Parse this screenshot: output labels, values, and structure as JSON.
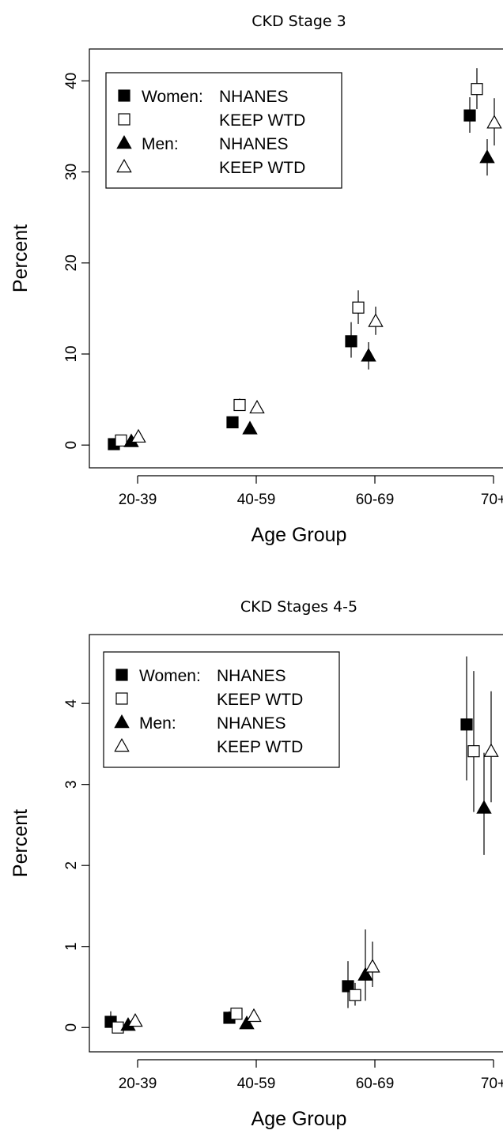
{
  "chart_data": [
    {
      "type": "scatter",
      "title": "CKD Stage 3",
      "xlabel": "Age Group",
      "ylabel": "Percent",
      "categories": [
        "20-39",
        "40-59",
        "60-69",
        "70+"
      ],
      "ylim": [
        -2.5,
        43.5
      ],
      "yticks": [
        0,
        10,
        20,
        30,
        40
      ],
      "grid": false,
      "legend": {
        "placement": "top-left",
        "entries": [
          {
            "sex": "Women:",
            "source": "NHANES"
          },
          {
            "sex": "",
            "source": "KEEP WTD"
          },
          {
            "sex": "Men:",
            "source": "NHANES"
          },
          {
            "sex": "",
            "source": "KEEP WTD"
          }
        ]
      },
      "series": [
        {
          "marker": "filled-square",
          "values": [
            0.1,
            2.5,
            11.4,
            36.2
          ],
          "lower": [
            0.0,
            2.2,
            9.6,
            34.3
          ],
          "upper": [
            0.3,
            2.9,
            13.5,
            38.2
          ]
        },
        {
          "marker": "open-square",
          "values": [
            0.5,
            4.4,
            15.1,
            39.1
          ],
          "lower": [
            0.3,
            3.8,
            13.3,
            36.9
          ],
          "upper": [
            0.8,
            5.1,
            17.0,
            41.4
          ]
        },
        {
          "marker": "filled-triangle",
          "values": [
            0.4,
            1.8,
            9.8,
            31.6
          ],
          "lower": [
            0.2,
            1.5,
            8.3,
            29.6
          ],
          "upper": [
            0.6,
            2.1,
            11.3,
            33.6
          ]
        },
        {
          "marker": "open-triangle",
          "values": [
            0.9,
            4.1,
            13.6,
            35.4
          ],
          "lower": [
            0.6,
            3.6,
            12.1,
            32.9
          ],
          "upper": [
            1.3,
            4.7,
            15.2,
            38.1
          ]
        }
      ]
    },
    {
      "type": "scatter",
      "title": "CKD Stages 4-5",
      "xlabel": "Age Group",
      "ylabel": "Percent",
      "categories": [
        "20-39",
        "40-59",
        "60-69",
        "70+"
      ],
      "ylim": [
        -0.3,
        4.85
      ],
      "yticks": [
        0,
        1,
        2,
        3,
        4
      ],
      "grid": false,
      "legend": {
        "placement": "top-left",
        "entries": [
          {
            "sex": "Women:",
            "source": "NHANES"
          },
          {
            "sex": "",
            "source": "KEEP WTD"
          },
          {
            "sex": "Men:",
            "source": "NHANES"
          },
          {
            "sex": "",
            "source": "KEEP WTD"
          }
        ]
      },
      "series": [
        {
          "marker": "filled-square",
          "values": [
            0.07,
            0.12,
            0.51,
            3.74
          ],
          "lower": [
            0.0,
            0.06,
            0.24,
            3.05
          ],
          "upper": [
            0.2,
            0.2,
            0.82,
            4.58
          ]
        },
        {
          "marker": "open-square",
          "values": [
            0.0,
            0.17,
            0.4,
            3.41
          ],
          "lower": [
            0.0,
            0.12,
            0.27,
            2.66
          ],
          "upper": [
            0.05,
            0.24,
            0.55,
            4.4
          ]
        },
        {
          "marker": "filled-triangle",
          "values": [
            0.03,
            0.05,
            0.65,
            2.71
          ],
          "lower": [
            0.0,
            0.02,
            0.33,
            2.13
          ],
          "upper": [
            0.08,
            0.09,
            1.21,
            3.39
          ]
        },
        {
          "marker": "open-triangle",
          "values": [
            0.08,
            0.14,
            0.75,
            3.41
          ],
          "lower": [
            0.03,
            0.08,
            0.5,
            2.78
          ],
          "upper": [
            0.14,
            0.21,
            1.06,
            4.15
          ]
        }
      ]
    }
  ]
}
